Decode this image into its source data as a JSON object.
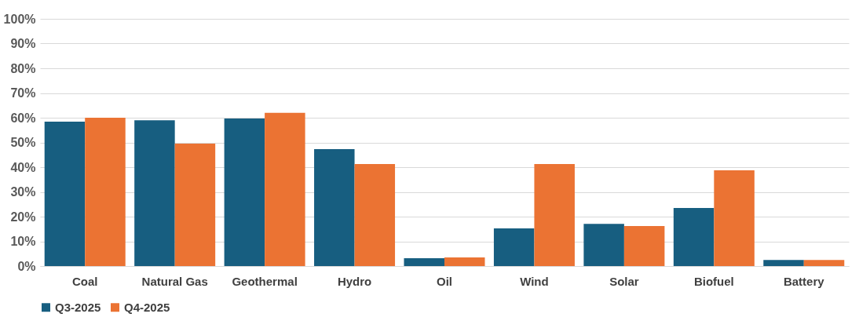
{
  "chart_data": {
    "type": "bar",
    "categories": [
      "Coal",
      "Natural Gas",
      "Geothermal",
      "Hydro",
      "Oil",
      "Wind",
      "Solar",
      "Biofuel",
      "Battery"
    ],
    "series": [
      {
        "name": "Q3-2025",
        "color": "#175e80",
        "values": [
          58.4,
          59,
          59.7,
          47.3,
          3.2,
          15.2,
          17.1,
          23.5,
          2.5
        ]
      },
      {
        "name": "Q4-2025",
        "color": "#eb7333",
        "values": [
          60,
          49.5,
          62,
          41.3,
          3.5,
          41.3,
          16.2,
          38.7,
          2.5
        ]
      }
    ],
    "ylim": [
      0,
      100
    ],
    "yticks": [
      {
        "value": 0,
        "label": "0%"
      },
      {
        "value": 10,
        "label": "10%"
      },
      {
        "value": 20,
        "label": "20%"
      },
      {
        "value": 30,
        "label": "30%"
      },
      {
        "value": 40,
        "label": "40%"
      },
      {
        "value": 50,
        "label": "50%"
      },
      {
        "value": 60,
        "label": "60%"
      },
      {
        "value": 70,
        "label": "70%"
      },
      {
        "value": 80,
        "label": "80%"
      },
      {
        "value": 90,
        "label": "90%"
      },
      {
        "value": 100,
        "label": "100%"
      }
    ],
    "grid": "y",
    "legend": "bottom"
  }
}
